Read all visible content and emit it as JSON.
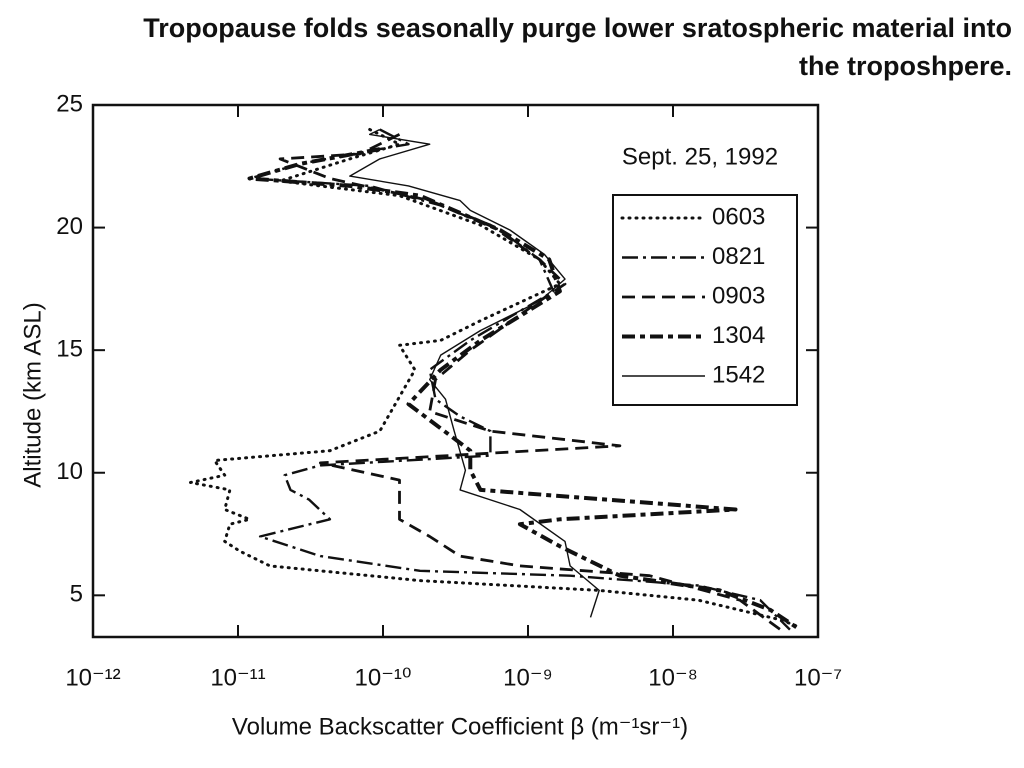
{
  "chart_data": {
    "type": "line",
    "title": "Tropopause folds seasonally purge lower sratospheric material into the troposhpere.",
    "annotation": "Sept. 25, 1992",
    "x_label": "Volume Backscatter Coefficient  β  (m⁻¹sr⁻¹)",
    "y_label": "Altitude (km ASL)",
    "xscale": "log",
    "grid": false,
    "legend": "upper right",
    "xlim": [
      1e-12,
      1e-07
    ],
    "xticks": [
      {
        "value": 1e-12,
        "label": "10⁻¹²"
      },
      {
        "value": 1e-11,
        "label": "10⁻¹¹"
      },
      {
        "value": 1e-10,
        "label": "10⁻¹⁰"
      },
      {
        "value": 1e-09,
        "label": "10⁻⁹"
      },
      {
        "value": 1e-08,
        "label": "10⁻⁸"
      },
      {
        "value": 1e-07,
        "label": "10⁻⁷"
      }
    ],
    "ylim": [
      3.3,
      25
    ],
    "yticks": [
      5,
      10,
      15,
      20,
      25
    ],
    "series": [
      {
        "name": "0603",
        "color": "#111111",
        "style": "dotted",
        "x": [
          8.1e-11,
          1.3e-10,
          5.9e-11,
          1.95e-11,
          1.3e-10,
          4.7e-10,
          1.2e-09,
          1.66e-09,
          4.7e-10,
          2.5e-10,
          1.3e-10,
          1.66e-10,
          9.5e-11,
          4.3e-11,
          6.9e-12,
          8.1e-12,
          4.7e-12,
          8.8e-12,
          8.1e-12,
          1.2e-11,
          8.8e-12,
          8.1e-12,
          1.03e-11,
          1.66e-11,
          1.8e-10,
          3.1e-09,
          1.5e-08,
          5.5e-08,
          7.5e-08
        ],
        "y": [
          24.0,
          23.4,
          22.8,
          21.9,
          21.3,
          20.1,
          18.7,
          17.7,
          16.2,
          15.4,
          15.2,
          14.2,
          11.7,
          10.9,
          10.5,
          9.9,
          9.6,
          9.3,
          8.5,
          8.1,
          7.9,
          7.2,
          6.8,
          6.2,
          5.6,
          5.2,
          4.8,
          4.0,
          3.7
        ]
      },
      {
        "name": "0821",
        "color": "#111111",
        "style": "dash-dot",
        "x": [
          9.5e-11,
          1.5e-10,
          9.5e-11,
          2.7e-11,
          1.2e-11,
          8.1e-11,
          2.5e-10,
          6.4e-10,
          1.2e-09,
          1.5e-09,
          4e-10,
          2.1e-10,
          2.3e-10,
          3.4e-10,
          5.5e-10,
          5.5e-10,
          3.7e-11,
          2.1e-11,
          2.3e-11,
          3.1e-11,
          4.3e-11,
          1.42e-11,
          3.7e-11,
          1.8e-10,
          1.95e-09,
          1.5e-08,
          4e-08,
          6.4e-08
        ],
        "y": [
          24.0,
          23.4,
          23.2,
          22.6,
          22.0,
          21.7,
          20.9,
          19.9,
          18.7,
          17.4,
          15.4,
          14.2,
          13.0,
          12.3,
          11.7,
          10.7,
          10.3,
          9.9,
          9.3,
          8.9,
          8.1,
          7.4,
          6.6,
          6.0,
          5.8,
          5.4,
          4.8,
          3.6
        ]
      },
      {
        "name": "0903",
        "color": "#111111",
        "style": "dashed",
        "x": [
          1.3e-10,
          6.9e-11,
          1.95e-11,
          4.3e-11,
          2.1e-10,
          5.5e-10,
          1.2e-09,
          1.8e-09,
          1.2e-09,
          4e-10,
          2.3e-10,
          2.1e-10,
          5.5e-10,
          4.3e-09,
          3.7e-11,
          1.3e-10,
          1.3e-10,
          2.1e-10,
          3.4e-10,
          8.8e-10,
          6.9e-09,
          2.9e-08,
          5.5e-08
        ],
        "y": [
          23.8,
          23.0,
          22.8,
          22.0,
          21.1,
          20.1,
          18.7,
          17.7,
          17.0,
          15.0,
          13.8,
          12.5,
          11.7,
          11.1,
          10.4,
          9.7,
          8.1,
          7.4,
          6.6,
          6.2,
          5.8,
          4.8,
          3.6
        ]
      },
      {
        "name": "1304",
        "color": "#111111",
        "style": "heavy-dash-dot",
        "x": [
          9.5e-11,
          2.7e-11,
          1.2e-11,
          5.9e-11,
          1.8e-10,
          6.4e-10,
          1.4e-09,
          1.66e-09,
          4.7e-10,
          2.5e-10,
          1.5e-10,
          4e-10,
          4e-10,
          4.7e-10,
          2.7e-08,
          1.66e-09,
          8.8e-10,
          1.66e-09,
          4.3e-09,
          2.1e-08,
          4.7e-08,
          7.5e-08
        ],
        "y": [
          23.2,
          22.6,
          22.0,
          21.7,
          21.3,
          19.9,
          18.7,
          17.4,
          15.4,
          14.2,
          12.8,
          10.9,
          10.1,
          9.3,
          8.5,
          8.1,
          7.9,
          7.0,
          5.8,
          5.2,
          4.4,
          3.6
        ]
      },
      {
        "name": "1542",
        "color": "#111111",
        "style": "solid",
        "x": [
          9.5e-11,
          8.1e-11,
          2.1e-10,
          9.5e-11,
          5.9e-11,
          1.5e-10,
          3.4e-10,
          4e-10,
          7.5e-10,
          1.3e-09,
          1.8e-09,
          1.2e-09,
          4.7e-10,
          2.5e-10,
          2.1e-10,
          2.7e-10,
          3.1e-10,
          3.7e-10,
          3.4e-10,
          8.8e-10,
          1.8e-09,
          1.95e-09,
          3.1e-09,
          2.7e-09
        ],
        "y": [
          24.0,
          23.8,
          23.4,
          22.8,
          22.1,
          21.7,
          21.1,
          20.7,
          19.9,
          18.9,
          17.9,
          17.0,
          15.8,
          14.8,
          13.8,
          13.0,
          11.7,
          10.1,
          9.3,
          8.5,
          7.2,
          6.2,
          5.2,
          4.1
        ]
      }
    ]
  }
}
